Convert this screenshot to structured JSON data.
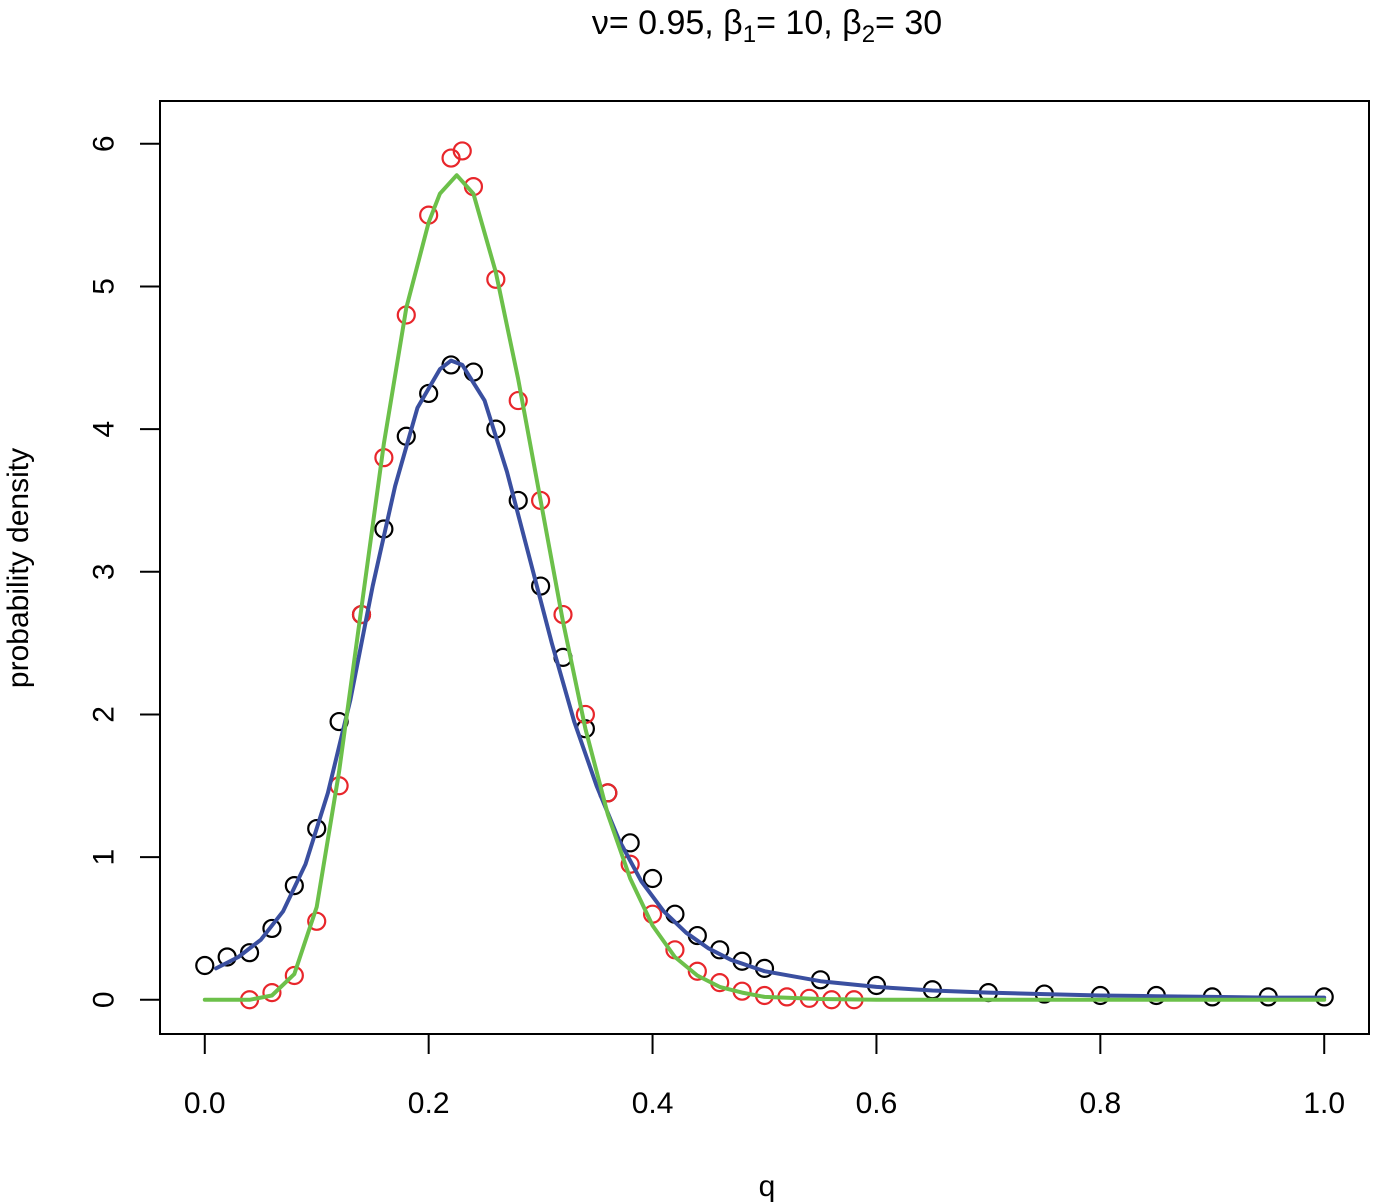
{
  "chart_data": {
    "type": "scatter",
    "title": {
      "parts": [
        {
          "text": "ν= 0.95, β"
        },
        {
          "text": "1",
          "sub": true
        },
        {
          "text": "= 10, β"
        },
        {
          "text": "2",
          "sub": true
        },
        {
          "text": "= 30"
        }
      ]
    },
    "xlabel": "q",
    "ylabel": "probability density",
    "xlim": [
      -0.04,
      1.04
    ],
    "ylim": [
      -0.24,
      6.3
    ],
    "xticks": [
      0.0,
      0.2,
      0.4,
      0.6,
      0.8,
      1.0
    ],
    "xtick_labels": [
      "0.0",
      "0.2",
      "0.4",
      "0.6",
      "0.8",
      "1.0"
    ],
    "yticks": [
      0,
      1,
      2,
      3,
      4,
      5,
      6
    ],
    "ytick_labels": [
      "0",
      "1",
      "2",
      "3",
      "4",
      "5",
      "6"
    ],
    "grid": false,
    "legend": "none",
    "colors": {
      "black_points": "#000000",
      "red_points": "#e8262b",
      "blue_curve": "#3a4fa0",
      "green_curve": "#6cc04a"
    },
    "series": [
      {
        "kind": "points",
        "color": "#000000",
        "x": [
          0.0,
          0.02,
          0.04,
          0.06,
          0.08,
          0.1,
          0.12,
          0.14,
          0.16,
          0.18,
          0.2,
          0.22,
          0.24,
          0.26,
          0.28,
          0.3,
          0.32,
          0.34,
          0.36,
          0.38,
          0.4,
          0.42,
          0.44,
          0.46,
          0.48,
          0.5,
          0.55,
          0.6,
          0.65,
          0.7,
          0.75,
          0.8,
          0.85,
          0.9,
          0.95,
          1.0
        ],
        "y": [
          0.24,
          0.3,
          0.33,
          0.5,
          0.8,
          1.2,
          1.95,
          2.7,
          3.3,
          3.95,
          4.25,
          4.45,
          4.4,
          4.0,
          3.5,
          2.9,
          2.4,
          1.9,
          1.45,
          1.1,
          0.85,
          0.6,
          0.45,
          0.35,
          0.27,
          0.22,
          0.14,
          0.1,
          0.07,
          0.05,
          0.04,
          0.03,
          0.03,
          0.02,
          0.02,
          0.02
        ]
      },
      {
        "kind": "points",
        "color": "#e8262b",
        "x": [
          0.04,
          0.06,
          0.08,
          0.1,
          0.12,
          0.14,
          0.16,
          0.18,
          0.2,
          0.22,
          0.23,
          0.24,
          0.26,
          0.28,
          0.3,
          0.32,
          0.34,
          0.36,
          0.38,
          0.4,
          0.42,
          0.44,
          0.46,
          0.48,
          0.5,
          0.52,
          0.54,
          0.56,
          0.58
        ],
        "y": [
          0.0,
          0.05,
          0.17,
          0.55,
          1.5,
          2.7,
          3.8,
          4.8,
          5.5,
          5.9,
          5.95,
          5.7,
          5.05,
          4.2,
          3.5,
          2.7,
          2.0,
          1.45,
          0.95,
          0.6,
          0.35,
          0.2,
          0.12,
          0.06,
          0.03,
          0.02,
          0.01,
          0.0,
          0.0
        ]
      },
      {
        "kind": "curve",
        "color": "#3a4fa0",
        "x": [
          0.01,
          0.03,
          0.05,
          0.07,
          0.09,
          0.11,
          0.13,
          0.15,
          0.17,
          0.19,
          0.21,
          0.22,
          0.23,
          0.25,
          0.27,
          0.29,
          0.31,
          0.33,
          0.35,
          0.37,
          0.39,
          0.41,
          0.43,
          0.45,
          0.47,
          0.5,
          0.55,
          0.6,
          0.65,
          0.7,
          0.75,
          0.8,
          0.85,
          0.9,
          0.95,
          1.0
        ],
        "y": [
          0.22,
          0.3,
          0.42,
          0.62,
          0.95,
          1.45,
          2.1,
          2.9,
          3.6,
          4.15,
          4.42,
          4.48,
          4.45,
          4.2,
          3.7,
          3.1,
          2.5,
          1.95,
          1.5,
          1.12,
          0.83,
          0.62,
          0.47,
          0.36,
          0.28,
          0.2,
          0.13,
          0.09,
          0.065,
          0.05,
          0.04,
          0.03,
          0.025,
          0.02,
          0.015,
          0.015
        ]
      },
      {
        "kind": "curve",
        "color": "#6cc04a",
        "x": [
          0.0,
          0.04,
          0.06,
          0.08,
          0.1,
          0.12,
          0.14,
          0.16,
          0.18,
          0.2,
          0.21,
          0.225,
          0.24,
          0.26,
          0.28,
          0.3,
          0.32,
          0.34,
          0.36,
          0.38,
          0.4,
          0.42,
          0.44,
          0.46,
          0.48,
          0.5,
          0.55,
          0.6,
          0.7,
          0.8,
          0.9,
          1.0
        ],
        "y": [
          0.0,
          0.0,
          0.03,
          0.18,
          0.65,
          1.6,
          2.75,
          3.9,
          4.85,
          5.45,
          5.65,
          5.78,
          5.65,
          5.1,
          4.35,
          3.5,
          2.65,
          1.9,
          1.3,
          0.85,
          0.52,
          0.3,
          0.17,
          0.09,
          0.05,
          0.02,
          0.005,
          0.0,
          0.0,
          0.0,
          0.0,
          0.0
        ]
      }
    ]
  }
}
